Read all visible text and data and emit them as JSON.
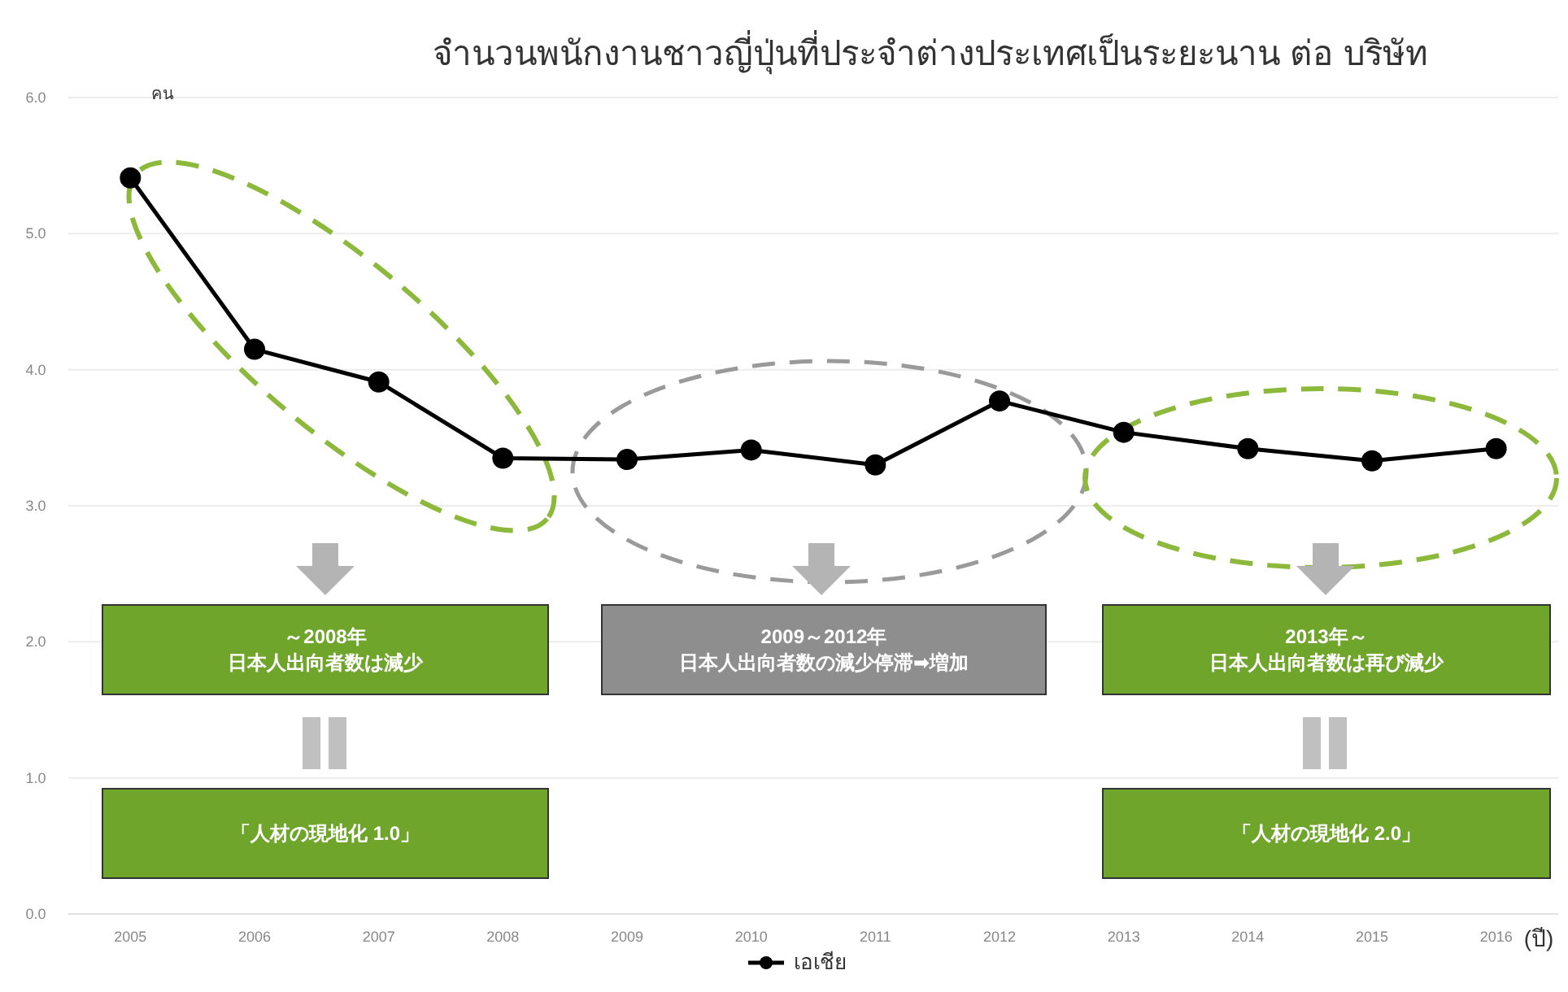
{
  "chart_data": {
    "type": "line",
    "title": "จำนวนพนักงานชาวญี่ปุ่นที่ประจำต่างประเทศเป็นระยะนาน ต่อ บริษัท",
    "ylabel": "คน",
    "xlabel": "(ปี)",
    "categories": [
      "2005",
      "2006",
      "2007",
      "2008",
      "2009",
      "2010",
      "2011",
      "2012",
      "2013",
      "2014",
      "2015",
      "2016"
    ],
    "series": [
      {
        "name": "เอเชีย",
        "color": "#000000",
        "values": [
          5.41,
          4.15,
          3.91,
          3.35,
          3.34,
          3.41,
          3.3,
          3.77,
          3.54,
          3.42,
          3.33,
          3.42
        ]
      }
    ],
    "ylim": [
      0,
      6
    ],
    "yticks": [
      {
        "value": 0,
        "label": "0.0"
      },
      {
        "value": 1,
        "label": "1.0"
      },
      {
        "value": 2,
        "label": "2.0"
      },
      {
        "value": 3,
        "label": "3.0"
      },
      {
        "value": 4,
        "label": "4.0"
      },
      {
        "value": 5,
        "label": "5.0"
      },
      {
        "value": 6,
        "label": "6.0"
      }
    ],
    "grid": "y",
    "marker": "circle",
    "line_style": "solid",
    "legend": "bottom",
    "annotations": [
      "～2008年",
      "日本人出向者数は減少",
      "2009～2012年",
      "日本人出向者数の減少停滞➡増加",
      "2013年～",
      "日本人出向者数は再び減少",
      "「人材の現地化 1.0」",
      "「人材の現地化 2.0」"
    ]
  }
}
